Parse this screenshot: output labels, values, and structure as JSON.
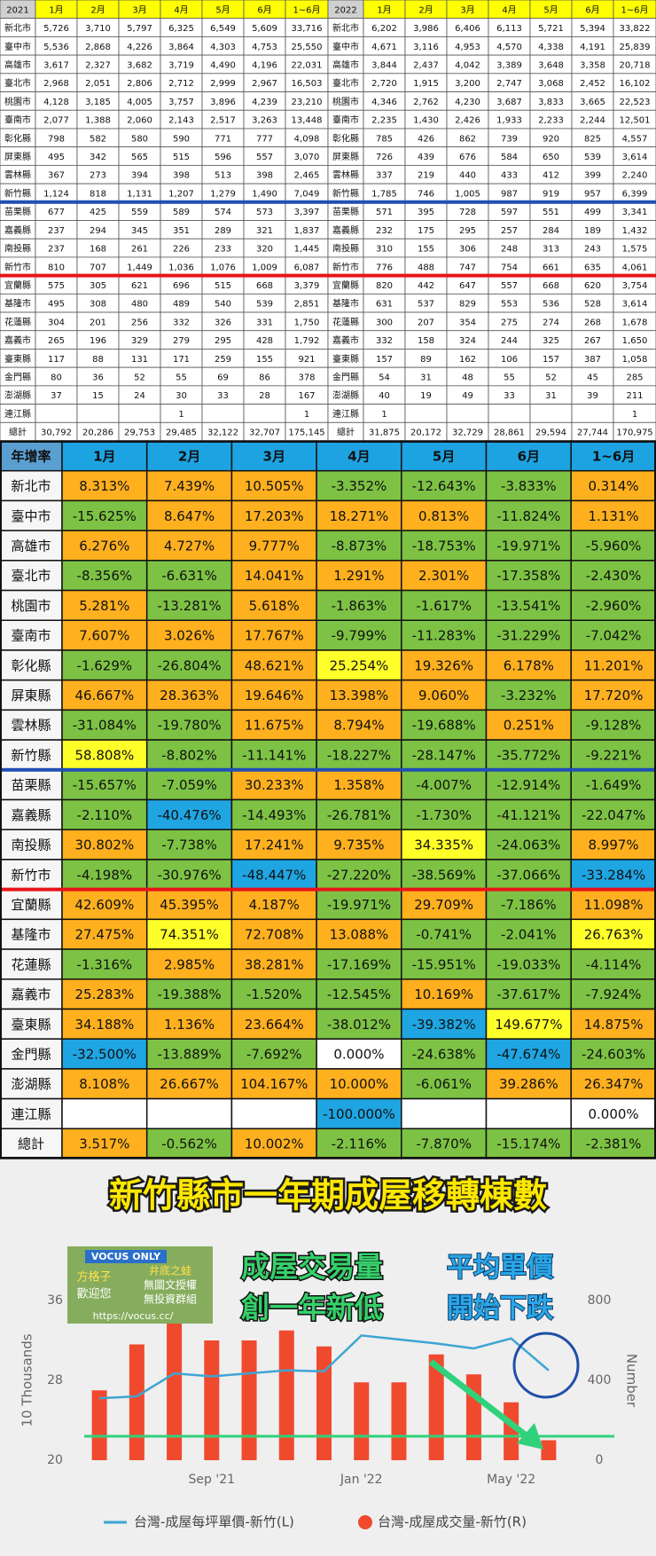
{
  "table_2021": {
    "header": [
      "2021",
      "1月",
      "2月",
      "3月",
      "4月",
      "5月",
      "6月",
      "1~6月"
    ],
    "rows": [
      [
        "新北市",
        "5,726",
        "3,710",
        "5,797",
        "6,325",
        "6,549",
        "5,609",
        "33,716"
      ],
      [
        "臺中市",
        "5,536",
        "2,868",
        "4,226",
        "3,864",
        "4,303",
        "4,753",
        "25,550"
      ],
      [
        "高雄市",
        "3,617",
        "2,327",
        "3,682",
        "3,719",
        "4,490",
        "4,196",
        "22,031"
      ],
      [
        "臺北市",
        "2,968",
        "2,051",
        "2,806",
        "2,712",
        "2,999",
        "2,967",
        "16,503"
      ],
      [
        "桃園市",
        "4,128",
        "3,185",
        "4,005",
        "3,757",
        "3,896",
        "4,239",
        "23,210"
      ],
      [
        "臺南市",
        "2,077",
        "1,388",
        "2,060",
        "2,143",
        "2,517",
        "3,263",
        "13,448"
      ],
      [
        "彰化縣",
        "798",
        "582",
        "580",
        "590",
        "771",
        "777",
        "4,098"
      ],
      [
        "屏東縣",
        "495",
        "342",
        "565",
        "515",
        "596",
        "557",
        "3,070"
      ],
      [
        "雲林縣",
        "367",
        "273",
        "394",
        "398",
        "513",
        "398",
        "2,465"
      ],
      [
        "新竹縣",
        "1,124",
        "818",
        "1,131",
        "1,207",
        "1,279",
        "1,490",
        "7,049"
      ],
      [
        "苗栗縣",
        "677",
        "425",
        "559",
        "589",
        "574",
        "573",
        "3,397"
      ],
      [
        "嘉義縣",
        "237",
        "294",
        "345",
        "351",
        "289",
        "321",
        "1,837"
      ],
      [
        "南投縣",
        "237",
        "168",
        "261",
        "226",
        "233",
        "320",
        "1,445"
      ],
      [
        "新竹市",
        "810",
        "707",
        "1,449",
        "1,036",
        "1,076",
        "1,009",
        "6,087"
      ],
      [
        "宜蘭縣",
        "575",
        "305",
        "621",
        "696",
        "515",
        "668",
        "3,379"
      ],
      [
        "基隆市",
        "495",
        "308",
        "480",
        "489",
        "540",
        "539",
        "2,851"
      ],
      [
        "花蓮縣",
        "304",
        "201",
        "256",
        "332",
        "326",
        "331",
        "1,750"
      ],
      [
        "嘉義市",
        "265",
        "196",
        "329",
        "279",
        "295",
        "428",
        "1,792"
      ],
      [
        "臺東縣",
        "117",
        "88",
        "131",
        "171",
        "259",
        "155",
        "921"
      ],
      [
        "金門縣",
        "80",
        "36",
        "52",
        "55",
        "69",
        "86",
        "378"
      ],
      [
        "澎湖縣",
        "37",
        "15",
        "24",
        "30",
        "33",
        "28",
        "167"
      ],
      [
        "連江縣",
        null,
        null,
        null,
        "1",
        null,
        null,
        "1"
      ],
      [
        "總計",
        "30,792",
        "20,286",
        "29,753",
        "29,485",
        "32,122",
        "32,707",
        "175,145"
      ]
    ]
  },
  "table_2022": {
    "header": [
      "2022",
      "1月",
      "2月",
      "3月",
      "4月",
      "5月",
      "6月",
      "1~6月"
    ],
    "rows": [
      [
        "新北市",
        "6,202",
        "3,986",
        "6,406",
        "6,113",
        "5,721",
        "5,394",
        "33,822"
      ],
      [
        "臺中市",
        "4,671",
        "3,116",
        "4,953",
        "4,570",
        "4,338",
        "4,191",
        "25,839"
      ],
      [
        "高雄市",
        "3,844",
        "2,437",
        "4,042",
        "3,389",
        "3,648",
        "3,358",
        "20,718"
      ],
      [
        "臺北市",
        "2,720",
        "1,915",
        "3,200",
        "2,747",
        "3,068",
        "2,452",
        "16,102"
      ],
      [
        "桃園市",
        "4,346",
        "2,762",
        "4,230",
        "3,687",
        "3,833",
        "3,665",
        "22,523"
      ],
      [
        "臺南市",
        "2,235",
        "1,430",
        "2,426",
        "1,933",
        "2,233",
        "2,244",
        "12,501"
      ],
      [
        "彰化縣",
        "785",
        "426",
        "862",
        "739",
        "920",
        "825",
        "4,557"
      ],
      [
        "屏東縣",
        "726",
        "439",
        "676",
        "584",
        "650",
        "539",
        "3,614"
      ],
      [
        "雲林縣",
        "337",
        "219",
        "440",
        "433",
        "412",
        "399",
        "2,240"
      ],
      [
        "新竹縣",
        "1,785",
        "746",
        "1,005",
        "987",
        "919",
        "957",
        "6,399"
      ],
      [
        "苗栗縣",
        "571",
        "395",
        "728",
        "597",
        "551",
        "499",
        "3,341"
      ],
      [
        "嘉義縣",
        "232",
        "175",
        "295",
        "257",
        "284",
        "189",
        "1,432"
      ],
      [
        "南投縣",
        "310",
        "155",
        "306",
        "248",
        "313",
        "243",
        "1,575"
      ],
      [
        "新竹市",
        "776",
        "488",
        "747",
        "754",
        "661",
        "635",
        "4,061"
      ],
      [
        "宜蘭縣",
        "820",
        "442",
        "647",
        "557",
        "668",
        "620",
        "3,754"
      ],
      [
        "基隆市",
        "631",
        "537",
        "829",
        "553",
        "536",
        "528",
        "3,614"
      ],
      [
        "花蓮縣",
        "300",
        "207",
        "354",
        "275",
        "274",
        "268",
        "1,678"
      ],
      [
        "嘉義市",
        "332",
        "158",
        "324",
        "244",
        "325",
        "267",
        "1,650"
      ],
      [
        "臺東縣",
        "157",
        "89",
        "162",
        "106",
        "157",
        "387",
        "1,058"
      ],
      [
        "金門縣",
        "54",
        "31",
        "48",
        "55",
        "52",
        "45",
        "285"
      ],
      [
        "澎湖縣",
        "40",
        "19",
        "49",
        "33",
        "31",
        "39",
        "211"
      ],
      [
        "連江縣",
        "1",
        null,
        null,
        null,
        null,
        null,
        "1"
      ],
      [
        "總計",
        "31,875",
        "20,172",
        "32,729",
        "28,861",
        "29,594",
        "27,744",
        "170,975"
      ]
    ]
  },
  "growth_table": {
    "header": [
      "年增率",
      "1月",
      "2月",
      "3月",
      "4月",
      "5月",
      "6月",
      "1~6月"
    ],
    "palette": {
      "o": "#ffb01f",
      "g": "#7dc244",
      "y": "#ffff2a",
      "b": "#1fa5e2",
      "w": "#ffffff"
    },
    "rows": [
      [
        "新北市",
        "8.313%",
        "7.439%",
        "10.505%",
        "-3.352%",
        "-12.643%",
        "-3.833%",
        "0.314%"
      ],
      [
        "臺中市",
        "-15.625%",
        "8.647%",
        "17.203%",
        "18.271%",
        "0.813%",
        "-11.824%",
        "1.131%"
      ],
      [
        "高雄市",
        "6.276%",
        "4.727%",
        "9.777%",
        "-8.873%",
        "-18.753%",
        "-19.971%",
        "-5.960%"
      ],
      [
        "臺北市",
        "-8.356%",
        "-6.631%",
        "14.041%",
        "1.291%",
        "2.301%",
        "-17.358%",
        "-2.430%"
      ],
      [
        "桃園市",
        "5.281%",
        "-13.281%",
        "5.618%",
        "-1.863%",
        "-1.617%",
        "-13.541%",
        "-2.960%"
      ],
      [
        "臺南市",
        "7.607%",
        "3.026%",
        "17.767%",
        "-9.799%",
        "-11.283%",
        "-31.229%",
        "-7.042%"
      ],
      [
        "彰化縣",
        "-1.629%",
        "-26.804%",
        "48.621%",
        "25.254%",
        "19.326%",
        "6.178%",
        "11.201%"
      ],
      [
        "屏東縣",
        "46.667%",
        "28.363%",
        "19.646%",
        "13.398%",
        "9.060%",
        "-3.232%",
        "17.720%"
      ],
      [
        "雲林縣",
        "-31.084%",
        "-19.780%",
        "11.675%",
        "8.794%",
        "-19.688%",
        "0.251%",
        "-9.128%"
      ],
      [
        "新竹縣",
        "58.808%",
        "-8.802%",
        "-11.141%",
        "-18.227%",
        "-28.147%",
        "-35.772%",
        "-9.221%"
      ],
      [
        "苗栗縣",
        "-15.657%",
        "-7.059%",
        "30.233%",
        "1.358%",
        "-4.007%",
        "-12.914%",
        "-1.649%"
      ],
      [
        "嘉義縣",
        "-2.110%",
        "-40.476%",
        "-14.493%",
        "-26.781%",
        "-1.730%",
        "-41.121%",
        "-22.047%"
      ],
      [
        "南投縣",
        "30.802%",
        "-7.738%",
        "17.241%",
        "9.735%",
        "34.335%",
        "-24.063%",
        "8.997%"
      ],
      [
        "新竹市",
        "-4.198%",
        "-30.976%",
        "-48.447%",
        "-27.220%",
        "-38.569%",
        "-37.066%",
        "-33.284%"
      ],
      [
        "宜蘭縣",
        "42.609%",
        "45.395%",
        "4.187%",
        "-19.971%",
        "29.709%",
        "-7.186%",
        "11.098%"
      ],
      [
        "基隆市",
        "27.475%",
        "74.351%",
        "72.708%",
        "13.088%",
        "-0.741%",
        "-2.041%",
        "26.763%"
      ],
      [
        "花蓮縣",
        "-1.316%",
        "2.985%",
        "38.281%",
        "-17.169%",
        "-15.951%",
        "-19.033%",
        "-4.114%"
      ],
      [
        "嘉義市",
        "25.283%",
        "-19.388%",
        "-1.520%",
        "-12.545%",
        "10.169%",
        "-37.617%",
        "-7.924%"
      ],
      [
        "臺東縣",
        "34.188%",
        "1.136%",
        "23.664%",
        "-38.012%",
        "-39.382%",
        "149.677%",
        "14.875%"
      ],
      [
        "金門縣",
        "-32.500%",
        "-13.889%",
        "-7.692%",
        "0.000%",
        "-24.638%",
        "-47.674%",
        "-24.603%"
      ],
      [
        "澎湖縣",
        "8.108%",
        "26.667%",
        "104.167%",
        "10.000%",
        "-6.061%",
        "39.286%",
        "26.347%"
      ],
      [
        "連江縣",
        null,
        null,
        null,
        "-100.000%",
        null,
        null,
        "0.000%"
      ],
      [
        "總計",
        "3.517%",
        "-0.562%",
        "10.002%",
        "-2.116%",
        "-7.870%",
        "-15.174%",
        "-2.381%"
      ]
    ],
    "fills": [
      "ooogggo",
      "goooogo",
      "ooogggg",
      "ggooogg",
      "ogogggg",
      "ooogggg",
      "ggoyooo",
      "ooooogo",
      "ggoogog",
      "ygggggg",
      "ggooggg",
      "gbggggg",
      "ogooygo",
      "ggbgggb",
      "ooogogo",
      "oyooggy",
      "googggg",
      "ogggogg",
      "ooogbyo",
      "bggwgbg",
      "oooogoo",
      "wwwbwww",
      "ogogggg"
    ]
  },
  "chart_title": "新竹縣市一年期成屋移轉棟數",
  "annotations": {
    "volume": [
      "成屋交易量",
      "創一年新低"
    ],
    "price": [
      "平均單價",
      "開始下跌"
    ]
  },
  "watermark": [
    "VOCUS ONLY",
    "方格子",
    "歡迎您",
    "井底之蛙",
    "無圖文授權",
    "無投資群組",
    "https://vocus.cc/"
  ],
  "chart_data": {
    "type": "combo",
    "categories": [
      null,
      null,
      null,
      "Sep '21",
      null,
      null,
      null,
      "Jan '22",
      null,
      null,
      null,
      "May '22",
      null
    ],
    "series": [
      {
        "name": "台灣-成屋每坪單價-新竹(L)",
        "type": "line",
        "color": "#3ea5d3",
        "axis": "y",
        "values": [
          26.2,
          26.4,
          28.7,
          28.4,
          28.7,
          29.0,
          28.9,
          32.5,
          32.1,
          31.7,
          31.2,
          32.2,
          29.0
        ]
      },
      {
        "name": "台灣-成屋成交量-新竹(R)",
        "type": "bar",
        "color": "#f04a2e",
        "axis": "y2",
        "values": [
          350,
          580,
          700,
          600,
          600,
          650,
          570,
          390,
          390,
          530,
          430,
          290,
          100
        ]
      }
    ],
    "ylabel": "10 Thousands",
    "y2label": "Number",
    "ylim": [
      20,
      36
    ],
    "yticks": [
      20,
      28,
      36
    ],
    "y2lim": [
      0,
      800
    ],
    "y2ticks": [
      0,
      400,
      800
    ]
  }
}
